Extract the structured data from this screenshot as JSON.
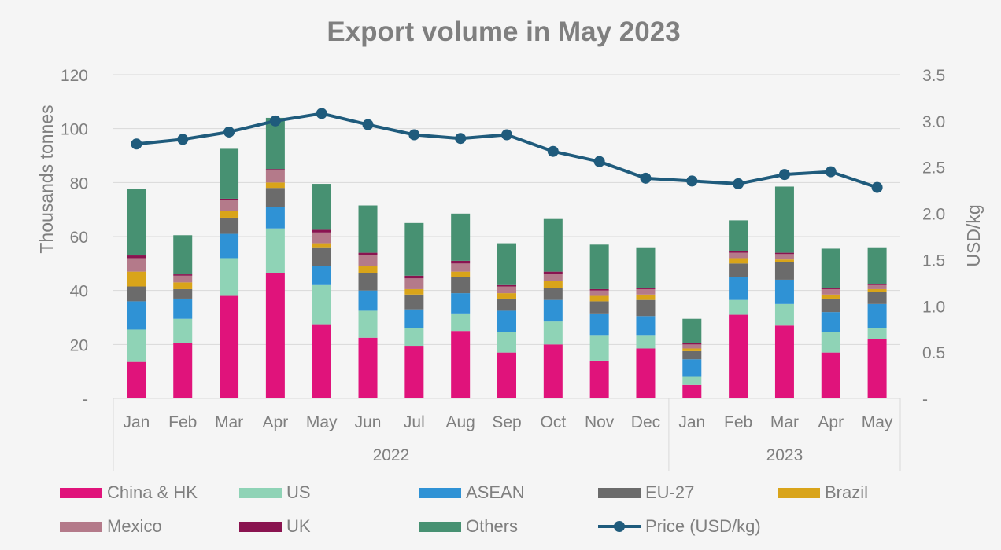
{
  "chart_data": {
    "type": "bar",
    "title": "Export volume in May 2023",
    "ylabel": "Thousands tonnes",
    "y2label": "USD/kg",
    "ylim": [
      0,
      120
    ],
    "y2lim": [
      0,
      3.5
    ],
    "yticks": [
      "-",
      "20",
      "40",
      "60",
      "80",
      "100",
      "120"
    ],
    "y2ticks": [
      "-",
      "0.5",
      "1.0",
      "1.5",
      "2.0",
      "2.5",
      "3.0",
      "3.5"
    ],
    "categories": [
      "Jan",
      "Feb",
      "Mar",
      "Apr",
      "May",
      "Jun",
      "Jul",
      "Aug",
      "Sep",
      "Oct",
      "Nov",
      "Dec",
      "Jan",
      "Feb",
      "Mar",
      "Apr",
      "May"
    ],
    "groups": [
      {
        "label": "2022",
        "count": 12
      },
      {
        "label": "2023",
        "count": 5
      }
    ],
    "stacked": true,
    "grid": true,
    "legend_position": "bottom",
    "series": [
      {
        "name": "China & HK",
        "color": "#e0137b",
        "values": [
          13.5,
          20.5,
          38,
          46.5,
          27.5,
          22.5,
          19.5,
          25,
          17,
          20,
          14,
          18.5,
          5,
          31,
          27,
          17,
          22
        ]
      },
      {
        "name": "US",
        "color": "#8fd3b6",
        "values": [
          12,
          9,
          14,
          16.5,
          14.5,
          10,
          6.5,
          6.5,
          7.5,
          8.5,
          9.5,
          5,
          3,
          5.5,
          8,
          7.5,
          4
        ]
      },
      {
        "name": "ASEAN",
        "color": "#2f92d5",
        "values": [
          10.5,
          7.5,
          9,
          8,
          7,
          7.5,
          7,
          7.5,
          8,
          8,
          8,
          7,
          6.5,
          8.5,
          9,
          7.5,
          9
        ]
      },
      {
        "name": "EU-27",
        "color": "#6b6b6b",
        "values": [
          5.5,
          3.5,
          6,
          7,
          7,
          6.5,
          5.5,
          6,
          4.5,
          4.5,
          4.5,
          6,
          3,
          5,
          6.5,
          5,
          4.5
        ]
      },
      {
        "name": "Brazil",
        "color": "#d9a41a",
        "values": [
          5.5,
          2.5,
          2.5,
          2,
          1.5,
          2.5,
          2,
          2,
          2,
          2.5,
          2,
          2,
          1,
          2,
          1,
          1.5,
          1
        ]
      },
      {
        "name": "Mexico",
        "color": "#b47a8a",
        "values": [
          5,
          2.5,
          4,
          4.5,
          4,
          4,
          4,
          3,
          2.5,
          2.5,
          2,
          2,
          1.5,
          2,
          2,
          2,
          1.5
        ]
      },
      {
        "name": "UK",
        "color": "#8a1450",
        "values": [
          1,
          0.5,
          0.5,
          0.5,
          1,
          1,
          1,
          1,
          0.5,
          1,
          0.5,
          0.5,
          0.5,
          0.5,
          0.5,
          0.5,
          0.5
        ]
      },
      {
        "name": "Others",
        "color": "#479172",
        "values": [
          24.5,
          14.5,
          18.5,
          19,
          17,
          17.5,
          19.5,
          17.5,
          15.5,
          19.5,
          16.5,
          15,
          9,
          11.5,
          24.5,
          14.5,
          13.5
        ]
      }
    ],
    "line_series": {
      "name": "Price (USD/kg)",
      "color": "#1f5b7c",
      "axis": "right",
      "values": [
        2.75,
        2.8,
        2.88,
        3.0,
        3.08,
        2.96,
        2.85,
        2.81,
        2.85,
        2.67,
        2.56,
        2.38,
        2.35,
        2.32,
        2.42,
        2.45,
        2.28
      ]
    }
  }
}
